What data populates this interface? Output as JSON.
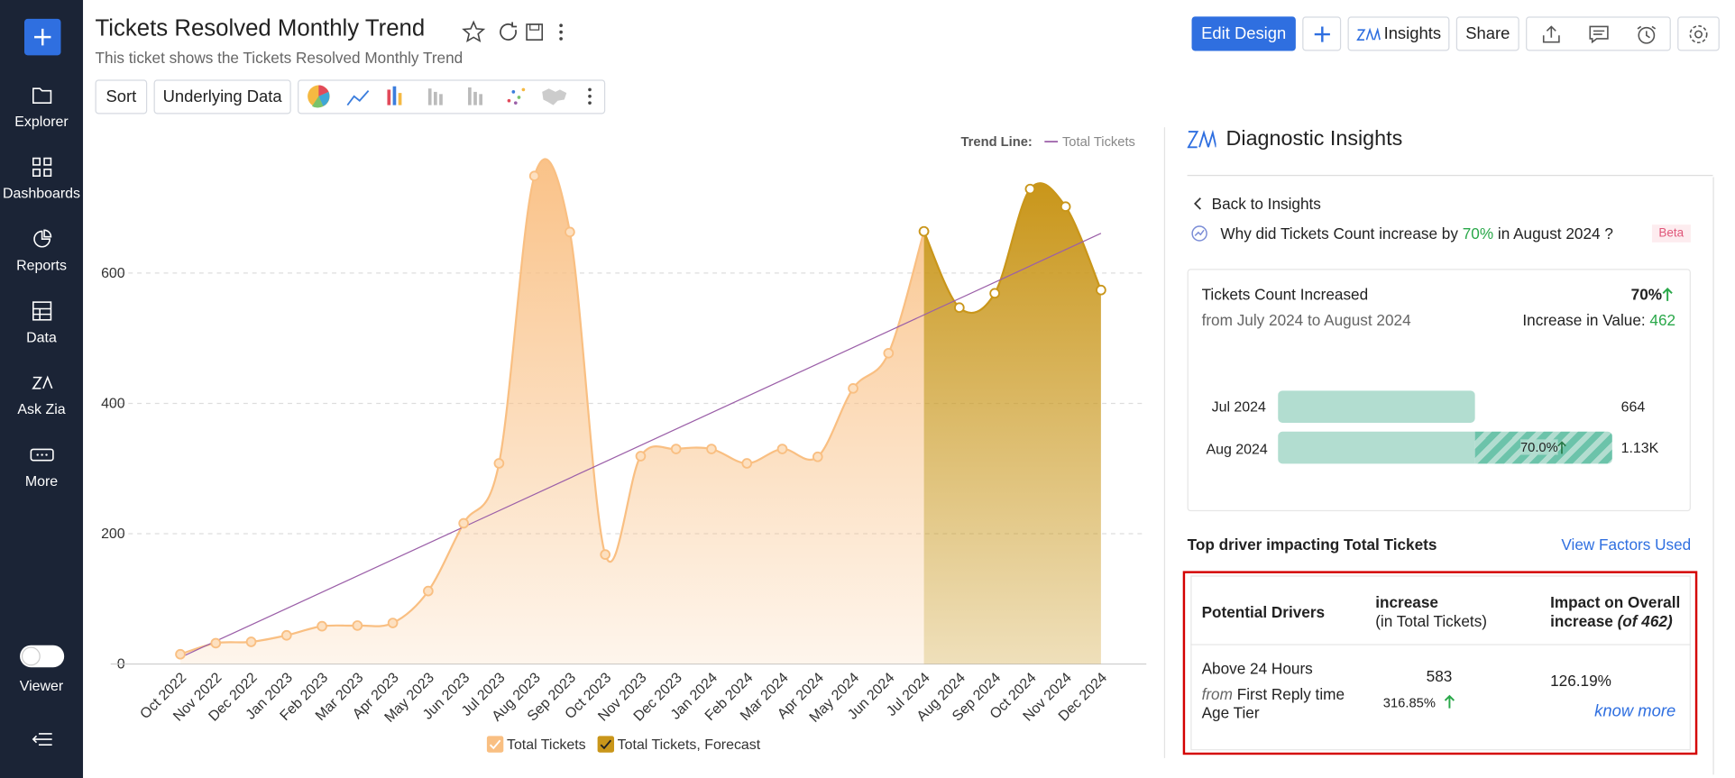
{
  "sidebar": {
    "items": [
      "Explorer",
      "Dashboards",
      "Reports",
      "Data",
      "Ask Zia",
      "More"
    ],
    "viewer": "Viewer"
  },
  "header": {
    "title": "Tickets Resolved Monthly Trend",
    "subtitle": "This ticket shows the Tickets Resolved Monthly Trend",
    "buttons": [
      "Edit Design",
      "Insights",
      "Share"
    ]
  },
  "toolbar": {
    "buttons": [
      "Sort",
      "Underlying Data"
    ]
  },
  "chart_data": {
    "type": "area",
    "categories": [
      "Oct 2022",
      "Nov 2022",
      "Dec 2022",
      "Jan 2023",
      "Feb 2023",
      "Mar 2023",
      "Apr 2023",
      "May 2023",
      "Jun 2023",
      "Jul 2023",
      "Aug 2023",
      "Sep 2023",
      "Oct 2023",
      "Nov 2023",
      "Dec 2023",
      "Jan 2024",
      "Feb 2024",
      "Mar 2024",
      "Apr 2024",
      "May 2024",
      "Jun 2024",
      "Jul 2024",
      "Aug 2024",
      "Sep 2024",
      "Oct 2024",
      "Nov 2024",
      "Dec 2024"
    ],
    "series": [
      {
        "name": "Total Tickets",
        "color": "#f9bf82",
        "values": [
          15,
          32,
          34,
          44,
          58,
          59,
          63,
          112,
          216,
          308,
          749,
          663,
          168,
          319,
          330,
          330,
          308,
          330,
          318,
          423,
          477,
          664,
          null,
          null,
          null,
          null,
          null
        ]
      },
      {
        "name": "Total Tickets, Forecast",
        "color": "#c9961a",
        "values": [
          null,
          null,
          null,
          null,
          null,
          null,
          null,
          null,
          null,
          null,
          null,
          null,
          null,
          null,
          null,
          null,
          null,
          null,
          null,
          null,
          null,
          664,
          547,
          569,
          729,
          702,
          574
        ]
      }
    ],
    "trend_line": {
      "label": "Trend Line:",
      "name": "Total Tickets",
      "color": "#9b5fa8",
      "values": [
        10,
        661
      ]
    },
    "ylim": [
      0,
      800
    ],
    "yticks": [
      0,
      200,
      400,
      600
    ],
    "grid": true
  },
  "insights": {
    "title": "Diagnostic Insights",
    "back": "Back to Insights",
    "question": [
      "Why did Tickets Count increase by",
      "70%",
      "in August 2024 ?"
    ],
    "beta": "Beta",
    "card": {
      "heading": "Tickets Count Increased",
      "period": "from July 2024 to August 2024",
      "pct": "70%",
      "value_label": "Increase in Value:",
      "value": 462,
      "rows": [
        {
          "label": "Jul 2024",
          "value": 664
        },
        {
          "label": "Aug 2024",
          "value": "1.13K",
          "change": "70.0%"
        }
      ]
    },
    "drivers_title": "Top driver impacting Total Tickets",
    "view_factors": "View Factors Used",
    "table": {
      "headers": [
        [
          "Potential Drivers"
        ],
        [
          "increase",
          "(in Total Tickets)"
        ],
        [
          "Impact on Overall",
          "increase",
          "(of 462)"
        ]
      ],
      "rows": [
        {
          "driver": "Above 24 Hours",
          "from": "from",
          "factor": "First Reply time",
          "factor2": "Age Tier",
          "increase": 583,
          "increase_pct": "316.85%",
          "impact": "126.19%",
          "link": "know more"
        }
      ]
    }
  }
}
